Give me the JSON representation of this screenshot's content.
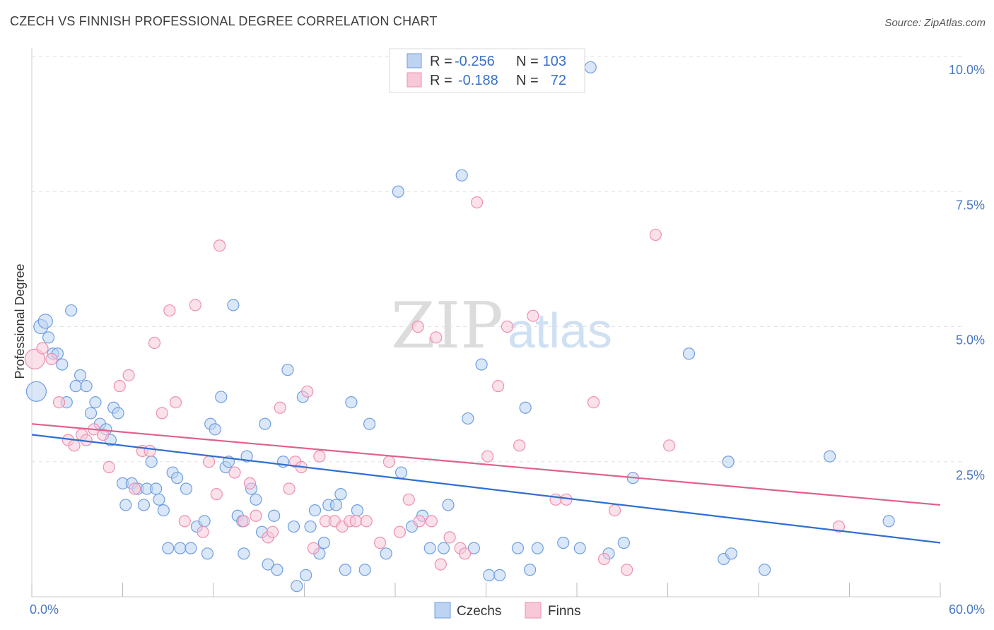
{
  "title": "CZECH VS FINNISH PROFESSIONAL DEGREE CORRELATION CHART",
  "source": "Source: ZipAtlas.com",
  "chart_data": {
    "type": "scatter",
    "ylabel": "Professional Degree",
    "x_ticks": [
      "0.0%",
      "60.0%"
    ],
    "y_ticks": [
      {
        "value": 2.5,
        "label": "2.5%"
      },
      {
        "value": 5.0,
        "label": "5.0%"
      },
      {
        "value": 7.5,
        "label": "7.5%"
      },
      {
        "value": 10.0,
        "label": "10.0%"
      }
    ],
    "xlim": [
      0,
      60
    ],
    "ylim": [
      0,
      10.0
    ],
    "grid": true,
    "legend_position": "top-center",
    "legend": {
      "r_label": "R =",
      "n_label": "N ="
    },
    "series": [
      {
        "name": "Czechs",
        "color": "#6f9ee0",
        "fill": "#bcd3f2",
        "line_color": "#2f6fd0",
        "r_value": "-0.256",
        "n_value": "103",
        "trend": {
          "x": [
            0,
            60
          ],
          "y": [
            3.0,
            1.0
          ]
        },
        "points": [
          [
            0.3,
            3.8
          ],
          [
            0.6,
            5.0
          ],
          [
            0.9,
            5.1
          ],
          [
            1.1,
            4.8
          ],
          [
            1.4,
            4.5
          ],
          [
            1.7,
            4.5
          ],
          [
            2.0,
            4.3
          ],
          [
            2.6,
            5.3
          ],
          [
            2.3,
            3.6
          ],
          [
            2.9,
            3.9
          ],
          [
            3.2,
            4.1
          ],
          [
            3.6,
            3.9
          ],
          [
            3.9,
            3.4
          ],
          [
            4.2,
            3.6
          ],
          [
            4.5,
            3.2
          ],
          [
            4.9,
            3.1
          ],
          [
            5.2,
            2.9
          ],
          [
            5.4,
            3.5
          ],
          [
            5.7,
            3.4
          ],
          [
            6.0,
            2.1
          ],
          [
            6.2,
            1.7
          ],
          [
            6.6,
            2.1
          ],
          [
            7.0,
            2.0
          ],
          [
            7.4,
            1.7
          ],
          [
            7.6,
            2.0
          ],
          [
            7.9,
            2.5
          ],
          [
            8.2,
            2.0
          ],
          [
            8.4,
            1.8
          ],
          [
            8.7,
            1.6
          ],
          [
            9.0,
            0.9
          ],
          [
            9.3,
            2.3
          ],
          [
            9.6,
            2.2
          ],
          [
            9.8,
            0.9
          ],
          [
            10.2,
            2.0
          ],
          [
            10.5,
            0.9
          ],
          [
            10.9,
            1.3
          ],
          [
            11.4,
            1.4
          ],
          [
            11.6,
            0.8
          ],
          [
            11.8,
            3.2
          ],
          [
            12.1,
            3.1
          ],
          [
            12.5,
            3.7
          ],
          [
            12.8,
            2.4
          ],
          [
            13.0,
            2.5
          ],
          [
            13.3,
            5.4
          ],
          [
            13.6,
            1.5
          ],
          [
            13.9,
            1.4
          ],
          [
            14.0,
            0.8
          ],
          [
            14.2,
            2.6
          ],
          [
            14.5,
            2.0
          ],
          [
            14.8,
            1.8
          ],
          [
            15.2,
            1.2
          ],
          [
            15.4,
            3.2
          ],
          [
            15.6,
            0.6
          ],
          [
            16.0,
            1.5
          ],
          [
            16.2,
            0.5
          ],
          [
            16.6,
            2.5
          ],
          [
            16.9,
            4.2
          ],
          [
            17.3,
            1.3
          ],
          [
            17.5,
            0.2
          ],
          [
            17.9,
            3.7
          ],
          [
            18.1,
            0.4
          ],
          [
            18.4,
            1.3
          ],
          [
            18.7,
            1.6
          ],
          [
            19.0,
            0.8
          ],
          [
            19.3,
            1.0
          ],
          [
            19.6,
            1.7
          ],
          [
            20.1,
            1.7
          ],
          [
            20.4,
            1.9
          ],
          [
            20.7,
            0.5
          ],
          [
            21.1,
            3.6
          ],
          [
            21.5,
            1.6
          ],
          [
            22.0,
            0.5
          ],
          [
            22.3,
            3.2
          ],
          [
            23.4,
            0.8
          ],
          [
            24.2,
            7.5
          ],
          [
            24.4,
            2.3
          ],
          [
            25.1,
            1.3
          ],
          [
            25.8,
            1.5
          ],
          [
            26.3,
            0.9
          ],
          [
            27.2,
            0.9
          ],
          [
            27.5,
            1.7
          ],
          [
            28.4,
            7.8
          ],
          [
            28.8,
            3.3
          ],
          [
            29.2,
            0.9
          ],
          [
            29.7,
            4.3
          ],
          [
            30.2,
            0.4
          ],
          [
            30.9,
            0.4
          ],
          [
            32.1,
            0.9
          ],
          [
            32.6,
            3.5
          ],
          [
            32.9,
            0.5
          ],
          [
            33.4,
            0.9
          ],
          [
            35.1,
            1.0
          ],
          [
            36.2,
            0.9
          ],
          [
            36.9,
            9.8
          ],
          [
            38.1,
            0.8
          ],
          [
            39.1,
            1.0
          ],
          [
            39.7,
            2.2
          ],
          [
            43.4,
            4.5
          ],
          [
            45.7,
            0.7
          ],
          [
            46.2,
            0.8
          ],
          [
            46.0,
            2.5
          ],
          [
            48.4,
            0.5
          ],
          [
            52.7,
            2.6
          ],
          [
            56.6,
            1.4
          ]
        ]
      },
      {
        "name": "Finns",
        "color": "#ee8fb0",
        "fill": "#f8c8d8",
        "line_color": "#e0608c",
        "r_value": "-0.188",
        "n_value": "72",
        "trend": {
          "x": [
            0,
            60
          ],
          "y": [
            3.2,
            1.7
          ]
        },
        "points": [
          [
            0.2,
            4.4
          ],
          [
            0.7,
            4.6
          ],
          [
            1.3,
            4.4
          ],
          [
            1.8,
            3.6
          ],
          [
            2.4,
            2.9
          ],
          [
            2.8,
            2.8
          ],
          [
            3.3,
            3.0
          ],
          [
            3.6,
            2.9
          ],
          [
            4.1,
            3.1
          ],
          [
            4.7,
            3.0
          ],
          [
            5.1,
            2.4
          ],
          [
            5.8,
            3.9
          ],
          [
            6.4,
            4.1
          ],
          [
            6.8,
            2.0
          ],
          [
            7.3,
            2.7
          ],
          [
            7.8,
            2.7
          ],
          [
            8.1,
            4.7
          ],
          [
            8.6,
            3.4
          ],
          [
            9.1,
            5.3
          ],
          [
            9.5,
            3.6
          ],
          [
            10.1,
            1.4
          ],
          [
            10.8,
            5.4
          ],
          [
            11.3,
            1.2
          ],
          [
            11.7,
            2.5
          ],
          [
            12.2,
            1.9
          ],
          [
            12.4,
            6.5
          ],
          [
            13.4,
            2.3
          ],
          [
            14.0,
            1.4
          ],
          [
            14.4,
            2.1
          ],
          [
            14.8,
            1.5
          ],
          [
            15.6,
            1.1
          ],
          [
            15.9,
            1.2
          ],
          [
            16.4,
            3.5
          ],
          [
            17.0,
            2.0
          ],
          [
            17.4,
            2.5
          ],
          [
            17.8,
            2.4
          ],
          [
            18.2,
            3.8
          ],
          [
            18.6,
            0.9
          ],
          [
            19.0,
            2.6
          ],
          [
            19.4,
            1.4
          ],
          [
            20.0,
            1.4
          ],
          [
            20.5,
            1.3
          ],
          [
            21.0,
            1.4
          ],
          [
            21.4,
            1.4
          ],
          [
            22.1,
            1.4
          ],
          [
            23.0,
            1.0
          ],
          [
            23.6,
            2.5
          ],
          [
            24.3,
            1.2
          ],
          [
            24.9,
            1.8
          ],
          [
            25.6,
            1.4
          ],
          [
            26.4,
            1.4
          ],
          [
            27.0,
            0.6
          ],
          [
            27.6,
            1.1
          ],
          [
            28.3,
            0.9
          ],
          [
            28.6,
            0.8
          ],
          [
            29.4,
            7.3
          ],
          [
            30.1,
            2.6
          ],
          [
            30.8,
            3.9
          ],
          [
            31.4,
            5.0
          ],
          [
            32.2,
            2.8
          ],
          [
            33.1,
            5.2
          ],
          [
            34.6,
            1.8
          ],
          [
            35.3,
            1.8
          ],
          [
            37.1,
            3.6
          ],
          [
            37.8,
            0.7
          ],
          [
            38.5,
            1.6
          ],
          [
            39.3,
            0.5
          ],
          [
            41.2,
            6.7
          ],
          [
            42.1,
            2.8
          ],
          [
            53.3,
            1.3
          ],
          [
            25.5,
            5.0
          ],
          [
            26.7,
            4.8
          ]
        ]
      }
    ],
    "bottom_legend": [
      "Czechs",
      "Finns"
    ]
  }
}
